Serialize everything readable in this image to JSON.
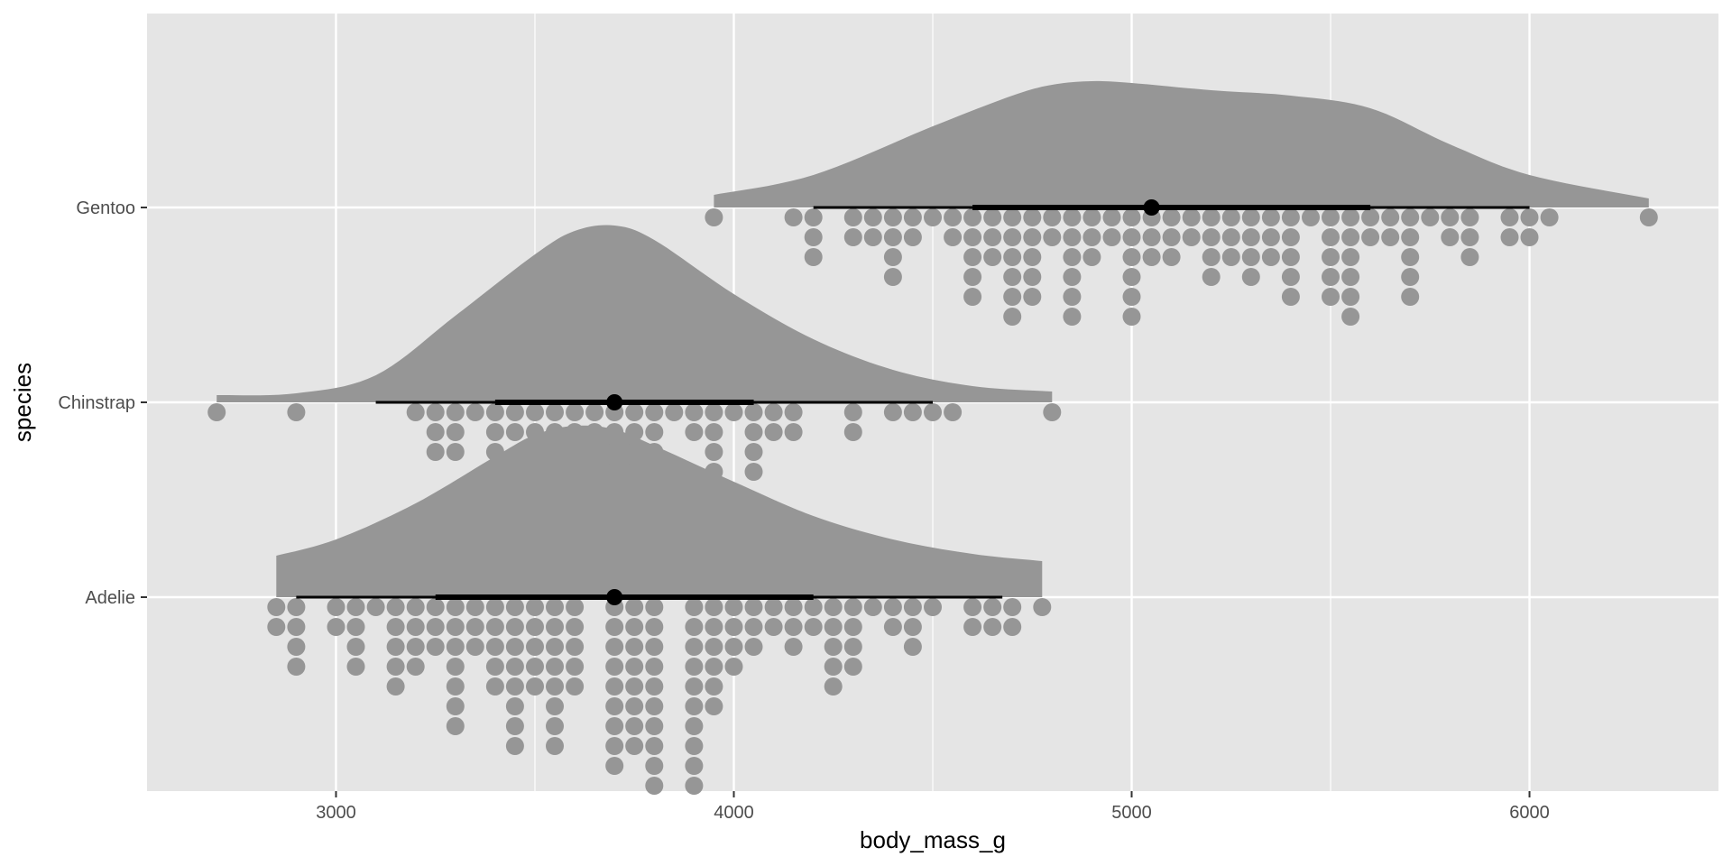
{
  "chart_data": {
    "type": "raincloud",
    "title": "",
    "xlabel": "body_mass_g",
    "ylabel": "species",
    "xlim": [
      2525,
      6475
    ],
    "x_ticks": [
      3000,
      4000,
      5000,
      6000
    ],
    "categories": [
      "Adelie",
      "Chinstrap",
      "Gentoo"
    ],
    "grid": true,
    "legend": "none",
    "colors": {
      "panel": "#e5e5e5",
      "grid": "#ffffff",
      "fill": "#969696",
      "interval": "#000000"
    },
    "series": [
      {
        "category": "Adelie",
        "density_range": [
          2850,
          4775
        ],
        "density": [
          [
            2850,
            0.23
          ],
          [
            3000,
            0.32
          ],
          [
            3200,
            0.52
          ],
          [
            3400,
            0.78
          ],
          [
            3500,
            0.9
          ],
          [
            3600,
            0.95
          ],
          [
            3700,
            0.93
          ],
          [
            3800,
            0.84
          ],
          [
            4000,
            0.64
          ],
          [
            4200,
            0.45
          ],
          [
            4400,
            0.32
          ],
          [
            4600,
            0.24
          ],
          [
            4775,
            0.2
          ]
        ],
        "interval_95": [
          2900,
          4675
        ],
        "interval_66": [
          3250,
          4200
        ],
        "median": 3700,
        "dots": [
          [
            2850,
            2
          ],
          [
            2900,
            4
          ],
          [
            3000,
            2
          ],
          [
            3050,
            4
          ],
          [
            3100,
            1
          ],
          [
            3150,
            5
          ],
          [
            3200,
            4
          ],
          [
            3250,
            3
          ],
          [
            3300,
            7
          ],
          [
            3350,
            3
          ],
          [
            3400,
            5
          ],
          [
            3450,
            8
          ],
          [
            3500,
            5
          ],
          [
            3550,
            8
          ],
          [
            3600,
            5
          ],
          [
            3700,
            9
          ],
          [
            3750,
            8
          ],
          [
            3800,
            10
          ],
          [
            3900,
            10
          ],
          [
            3950,
            6
          ],
          [
            4000,
            4
          ],
          [
            4050,
            3
          ],
          [
            4100,
            2
          ],
          [
            4150,
            3
          ],
          [
            4200,
            2
          ],
          [
            4250,
            5
          ],
          [
            4300,
            4
          ],
          [
            4350,
            1
          ],
          [
            4400,
            2
          ],
          [
            4450,
            3
          ],
          [
            4500,
            1
          ],
          [
            4600,
            2
          ],
          [
            4650,
            2
          ],
          [
            4700,
            2
          ],
          [
            4775,
            1
          ]
        ]
      },
      {
        "category": "Chinstrap",
        "density_range": [
          2700,
          4800
        ],
        "density": [
          [
            2700,
            0.04
          ],
          [
            2900,
            0.05
          ],
          [
            3100,
            0.15
          ],
          [
            3300,
            0.48
          ],
          [
            3500,
            0.82
          ],
          [
            3600,
            0.95
          ],
          [
            3700,
            0.98
          ],
          [
            3800,
            0.9
          ],
          [
            4000,
            0.6
          ],
          [
            4200,
            0.35
          ],
          [
            4400,
            0.18
          ],
          [
            4600,
            0.09
          ],
          [
            4800,
            0.06
          ]
        ],
        "interval_95": [
          3100,
          4500
        ],
        "interval_66": [
          3400,
          4050
        ],
        "median": 3700,
        "dots": [
          [
            2700,
            1
          ],
          [
            2900,
            1
          ],
          [
            3200,
            1
          ],
          [
            3250,
            3
          ],
          [
            3300,
            3
          ],
          [
            3350,
            1
          ],
          [
            3400,
            4
          ],
          [
            3450,
            2
          ],
          [
            3500,
            4
          ],
          [
            3550,
            2
          ],
          [
            3600,
            3
          ],
          [
            3650,
            4
          ],
          [
            3700,
            4
          ],
          [
            3750,
            4
          ],
          [
            3800,
            4
          ],
          [
            3850,
            1
          ],
          [
            3900,
            2
          ],
          [
            3950,
            4
          ],
          [
            4000,
            1
          ],
          [
            4050,
            4
          ],
          [
            4100,
            2
          ],
          [
            4150,
            2
          ],
          [
            4300,
            2
          ],
          [
            4400,
            1
          ],
          [
            4450,
            1
          ],
          [
            4500,
            1
          ],
          [
            4550,
            1
          ],
          [
            4800,
            1
          ]
        ]
      },
      {
        "category": "Gentoo",
        "density_range": [
          3950,
          6300
        ],
        "density": [
          [
            3950,
            0.07
          ],
          [
            4200,
            0.18
          ],
          [
            4500,
            0.45
          ],
          [
            4700,
            0.62
          ],
          [
            4800,
            0.68
          ],
          [
            4900,
            0.7
          ],
          [
            5000,
            0.69
          ],
          [
            5200,
            0.65
          ],
          [
            5400,
            0.62
          ],
          [
            5600,
            0.55
          ],
          [
            5800,
            0.35
          ],
          [
            6000,
            0.18
          ],
          [
            6300,
            0.05
          ]
        ],
        "interval_95": [
          4200,
          6000
        ],
        "interval_66": [
          4600,
          5600
        ],
        "median": 5050,
        "dots": [
          [
            3950,
            1
          ],
          [
            4150,
            1
          ],
          [
            4200,
            3
          ],
          [
            4300,
            2
          ],
          [
            4350,
            2
          ],
          [
            4400,
            4
          ],
          [
            4450,
            2
          ],
          [
            4500,
            1
          ],
          [
            4550,
            2
          ],
          [
            4600,
            5
          ],
          [
            4650,
            3
          ],
          [
            4700,
            6
          ],
          [
            4750,
            5
          ],
          [
            4800,
            2
          ],
          [
            4850,
            6
          ],
          [
            4900,
            3
          ],
          [
            4950,
            2
          ],
          [
            5000,
            6
          ],
          [
            5050,
            3
          ],
          [
            5100,
            3
          ],
          [
            5150,
            2
          ],
          [
            5200,
            4
          ],
          [
            5250,
            3
          ],
          [
            5300,
            4
          ],
          [
            5350,
            3
          ],
          [
            5400,
            5
          ],
          [
            5450,
            1
          ],
          [
            5500,
            5
          ],
          [
            5550,
            6
          ],
          [
            5600,
            2
          ],
          [
            5650,
            2
          ],
          [
            5700,
            5
          ],
          [
            5750,
            1
          ],
          [
            5800,
            2
          ],
          [
            5850,
            3
          ],
          [
            5950,
            2
          ],
          [
            6000,
            2
          ],
          [
            6050,
            1
          ],
          [
            6300,
            1
          ]
        ]
      }
    ]
  }
}
